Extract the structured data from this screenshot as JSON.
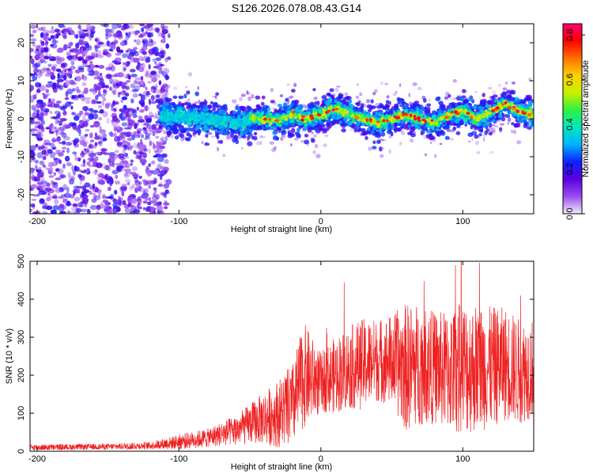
{
  "title": "S126.2026.078.08.43.G14",
  "chart_data": [
    {
      "type": "heatmap",
      "xlabel": "Height of straight line (km)",
      "ylabel": "Frequency (Hz)",
      "xlim": [
        -205,
        150
      ],
      "ylim": [
        -25,
        25
      ],
      "xticks": [
        -200,
        -100,
        0,
        100
      ],
      "yticks": [
        -20,
        -10,
        0,
        10,
        20
      ],
      "colorbar": {
        "label": "Normalized spectral amplitude",
        "range": [
          0.0,
          0.85
        ],
        "ticks": [
          0.0,
          0.2,
          0.4,
          0.6,
          0.8
        ],
        "colors": [
          "#f4ecfb",
          "#9a4df0",
          "#5a00e0",
          "#1020ff",
          "#00b0ff",
          "#00e8c0",
          "#30f040",
          "#c8f000",
          "#ffd000",
          "#ff7000",
          "#ff0000",
          "#ff0070"
        ]
      },
      "ridge_center_hz": [
        [
          -115,
          1
        ],
        [
          -100,
          0.5
        ],
        [
          -80,
          0
        ],
        [
          -60,
          -1
        ],
        [
          -45,
          0
        ],
        [
          -30,
          -0.5
        ],
        [
          -20,
          1
        ],
        [
          -10,
          0
        ],
        [
          0,
          1
        ],
        [
          10,
          3
        ],
        [
          20,
          1
        ],
        [
          30,
          0
        ],
        [
          40,
          -1
        ],
        [
          50,
          0
        ],
        [
          60,
          1
        ],
        [
          70,
          0
        ],
        [
          80,
          -1
        ],
        [
          90,
          1
        ],
        [
          100,
          2
        ],
        [
          110,
          0
        ],
        [
          120,
          2
        ],
        [
          130,
          4
        ],
        [
          140,
          2
        ],
        [
          150,
          1
        ]
      ],
      "noise_region_km": [
        -205,
        -115
      ]
    },
    {
      "type": "line",
      "xlabel": "Height of straight line (km)",
      "ylabel": "SNR (10 * v/v)",
      "xlim": [
        -205,
        150
      ],
      "ylim": [
        0,
        500
      ],
      "xticks": [
        -200,
        -100,
        0,
        100
      ],
      "yticks": [
        0,
        100,
        200,
        300,
        400,
        500
      ],
      "color": "#ee2222",
      "envelope": [
        [
          -205,
          10,
          8
        ],
        [
          -150,
          12,
          8
        ],
        [
          -120,
          15,
          10
        ],
        [
          -100,
          25,
          20
        ],
        [
          -80,
          35,
          25
        ],
        [
          -60,
          55,
          40
        ],
        [
          -45,
          80,
          60
        ],
        [
          -30,
          100,
          90
        ],
        [
          -20,
          120,
          110
        ],
        [
          -12,
          200,
          140
        ],
        [
          0,
          180,
          80
        ],
        [
          10,
          200,
          100
        ],
        [
          20,
          220,
          110
        ],
        [
          30,
          230,
          120
        ],
        [
          40,
          240,
          110
        ],
        [
          50,
          240,
          120
        ],
        [
          60,
          220,
          170
        ],
        [
          70,
          230,
          160
        ],
        [
          80,
          220,
          150
        ],
        [
          90,
          210,
          160
        ],
        [
          100,
          220,
          180
        ],
        [
          110,
          220,
          170
        ],
        [
          120,
          220,
          160
        ],
        [
          130,
          230,
          150
        ],
        [
          140,
          210,
          140
        ],
        [
          150,
          220,
          130
        ]
      ]
    }
  ]
}
